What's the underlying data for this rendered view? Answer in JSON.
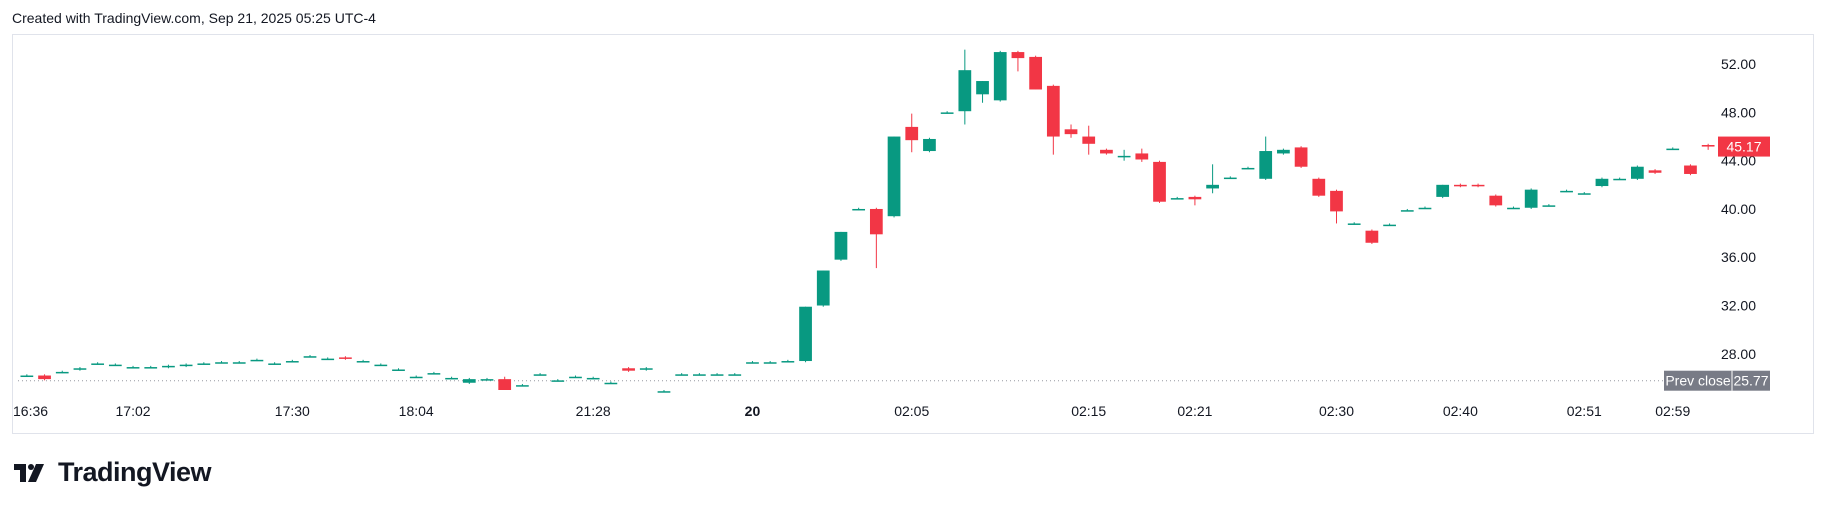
{
  "header": {
    "created_text": "Created with TradingView.com, Sep 21, 2025 05:25 UTC-4"
  },
  "brand": {
    "name": "TradingView"
  },
  "colors": {
    "up": "#089981",
    "down": "#f23645",
    "axis_text": "#131722",
    "prev_close_bg": "#787b86",
    "border": "#e0e3eb"
  },
  "chart_data": {
    "type": "candlestick",
    "ylim": [
      25.0,
      54.0
    ],
    "y_ticks": [
      "52.00",
      "48.00",
      "44.00",
      "40.00",
      "36.00",
      "32.00",
      "28.00"
    ],
    "x_ticks": [
      {
        "label": "16:36",
        "i": 0,
        "bold": false
      },
      {
        "label": "17:02",
        "i": 6,
        "bold": false
      },
      {
        "label": "17:30",
        "i": 15,
        "bold": false
      },
      {
        "label": "18:04",
        "i": 22,
        "bold": false
      },
      {
        "label": "21:28",
        "i": 32,
        "bold": false
      },
      {
        "label": "20",
        "i": 41,
        "bold": true
      },
      {
        "label": "02:05",
        "i": 50,
        "bold": false
      },
      {
        "label": "02:15",
        "i": 60,
        "bold": false
      },
      {
        "label": "02:21",
        "i": 66,
        "bold": false
      },
      {
        "label": "02:30",
        "i": 74,
        "bold": false
      },
      {
        "label": "02:40",
        "i": 81,
        "bold": false
      },
      {
        "label": "02:51",
        "i": 88,
        "bold": false
      },
      {
        "label": "02:59",
        "i": 93,
        "bold": false
      }
    ],
    "last_price": {
      "label": "45.17",
      "value": 45.17
    },
    "prev_close": {
      "label": "Prev close",
      "value_label": "25.77",
      "value": 25.77
    },
    "candles": [
      [
        26.2,
        26.3,
        26.1,
        26.2
      ],
      [
        26.2,
        26.3,
        25.8,
        25.9
      ],
      [
        26.5,
        26.6,
        26.4,
        26.5
      ],
      [
        26.7,
        26.9,
        26.6,
        26.8
      ],
      [
        27.2,
        27.3,
        27.1,
        27.2
      ],
      [
        27.1,
        27.2,
        27.0,
        27.1
      ],
      [
        26.9,
        27.0,
        26.8,
        26.9
      ],
      [
        26.9,
        27.0,
        26.8,
        26.9
      ],
      [
        26.9,
        27.1,
        26.8,
        27.0
      ],
      [
        27.0,
        27.2,
        26.9,
        27.1
      ],
      [
        27.2,
        27.3,
        27.1,
        27.2
      ],
      [
        27.3,
        27.4,
        27.2,
        27.3
      ],
      [
        27.3,
        27.4,
        27.2,
        27.3
      ],
      [
        27.5,
        27.6,
        27.4,
        27.5
      ],
      [
        27.2,
        27.3,
        27.1,
        27.2
      ],
      [
        27.4,
        27.5,
        27.3,
        27.4
      ],
      [
        27.8,
        27.9,
        27.7,
        27.8
      ],
      [
        27.6,
        27.7,
        27.5,
        27.6
      ],
      [
        27.7,
        27.8,
        27.5,
        27.6
      ],
      [
        27.4,
        27.5,
        27.3,
        27.4
      ],
      [
        27.1,
        27.2,
        27.0,
        27.1
      ],
      [
        26.7,
        26.8,
        26.6,
        26.7
      ],
      [
        26.1,
        26.2,
        26.0,
        26.1
      ],
      [
        26.4,
        26.5,
        26.3,
        26.4
      ],
      [
        26.0,
        26.1,
        25.9,
        26.0
      ],
      [
        25.6,
        26.0,
        25.5,
        25.9
      ],
      [
        25.9,
        26.0,
        25.8,
        25.9
      ],
      [
        25.9,
        26.1,
        25.0,
        25.0
      ],
      [
        25.4,
        25.5,
        25.3,
        25.4
      ],
      [
        26.3,
        26.4,
        26.2,
        26.3
      ],
      [
        25.8,
        25.9,
        25.7,
        25.8
      ],
      [
        26.1,
        26.2,
        26.0,
        26.1
      ],
      [
        26.0,
        26.1,
        25.9,
        26.0
      ],
      [
        25.6,
        25.7,
        25.5,
        25.6
      ],
      [
        26.8,
        26.9,
        26.5,
        26.6
      ],
      [
        26.7,
        26.9,
        26.6,
        26.8
      ],
      [
        24.9,
        25.0,
        24.8,
        24.9
      ],
      [
        26.3,
        26.4,
        26.2,
        26.3
      ],
      [
        26.3,
        26.4,
        26.2,
        26.3
      ],
      [
        26.3,
        26.4,
        26.2,
        26.3
      ],
      [
        26.3,
        26.4,
        26.2,
        26.3
      ],
      [
        27.3,
        27.4,
        27.2,
        27.3
      ],
      [
        27.3,
        27.4,
        27.2,
        27.3
      ],
      [
        27.4,
        27.5,
        27.3,
        27.4
      ],
      [
        27.4,
        31.9,
        27.3,
        31.9
      ],
      [
        32.0,
        34.9,
        31.9,
        34.9
      ],
      [
        35.8,
        38.1,
        35.7,
        38.1
      ],
      [
        40.0,
        40.1,
        39.9,
        40.0
      ],
      [
        40.0,
        40.1,
        35.1,
        37.9
      ],
      [
        39.4,
        46.0,
        39.3,
        46.0
      ],
      [
        46.8,
        47.9,
        44.7,
        45.7
      ],
      [
        44.8,
        45.9,
        44.7,
        45.8
      ],
      [
        48.0,
        48.1,
        47.9,
        48.0
      ],
      [
        48.1,
        53.2,
        47.0,
        51.5
      ],
      [
        49.5,
        50.6,
        48.8,
        50.6
      ],
      [
        49.0,
        53.1,
        48.9,
        53.0
      ],
      [
        53.0,
        53.1,
        51.4,
        52.5
      ],
      [
        52.6,
        52.7,
        49.9,
        49.9
      ],
      [
        50.2,
        50.3,
        44.5,
        46.0
      ],
      [
        46.6,
        47.0,
        45.9,
        46.2
      ],
      [
        46.0,
        46.9,
        44.5,
        45.4
      ],
      [
        44.9,
        45.0,
        44.5,
        44.6
      ],
      [
        44.3,
        44.9,
        44.0,
        44.4
      ],
      [
        44.6,
        45.0,
        43.9,
        44.1
      ],
      [
        43.9,
        44.0,
        40.5,
        40.6
      ],
      [
        40.9,
        41.0,
        40.8,
        40.9
      ],
      [
        41.0,
        41.1,
        40.3,
        40.8
      ],
      [
        41.7,
        43.7,
        41.3,
        42.0
      ],
      [
        42.6,
        42.7,
        42.5,
        42.6
      ],
      [
        43.4,
        43.5,
        43.3,
        43.4
      ],
      [
        42.5,
        46.0,
        42.4,
        44.8
      ],
      [
        44.6,
        45.0,
        44.5,
        44.9
      ],
      [
        45.1,
        45.2,
        43.4,
        43.5
      ],
      [
        42.5,
        42.6,
        41.0,
        41.1
      ],
      [
        41.5,
        41.6,
        38.8,
        39.8
      ],
      [
        38.8,
        38.9,
        38.7,
        38.8
      ],
      [
        38.2,
        38.3,
        37.1,
        37.2
      ],
      [
        38.7,
        38.8,
        38.6,
        38.7
      ],
      [
        39.9,
        40.0,
        39.8,
        39.9
      ],
      [
        40.1,
        40.2,
        40.0,
        40.1
      ],
      [
        41.0,
        42.0,
        40.9,
        42.0
      ],
      [
        42.0,
        42.1,
        41.8,
        41.9
      ],
      [
        42.0,
        42.1,
        41.8,
        41.9
      ],
      [
        41.1,
        41.2,
        40.2,
        40.3
      ],
      [
        40.1,
        40.2,
        40.0,
        40.1
      ],
      [
        40.1,
        41.7,
        40.0,
        41.6
      ],
      [
        40.3,
        40.4,
        40.2,
        40.3
      ],
      [
        41.5,
        41.6,
        41.4,
        41.5
      ],
      [
        41.3,
        41.4,
        41.2,
        41.3
      ],
      [
        41.9,
        42.6,
        41.8,
        42.5
      ],
      [
        42.5,
        42.6,
        42.4,
        42.5
      ],
      [
        42.5,
        43.6,
        42.4,
        43.5
      ],
      [
        43.2,
        43.3,
        42.9,
        43.0
      ],
      [
        45.0,
        45.1,
        44.9,
        45.0
      ],
      [
        43.6,
        43.7,
        42.8,
        42.9
      ],
      [
        45.3,
        45.4,
        44.9,
        45.17
      ]
    ]
  }
}
